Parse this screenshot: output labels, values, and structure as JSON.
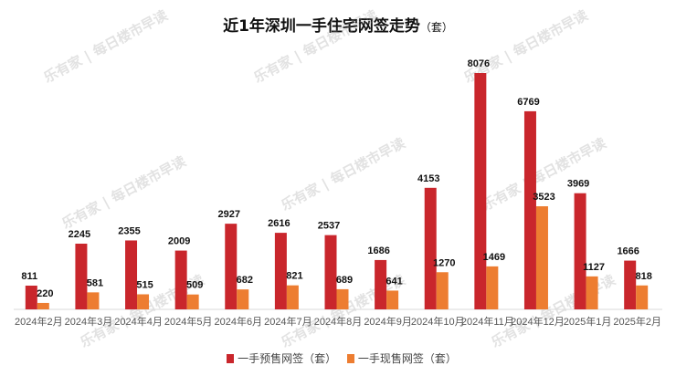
{
  "chart_data": {
    "type": "bar",
    "title": "近1年深圳一手住宅网签走势",
    "title_unit": "（套）",
    "categories": [
      "2024年2月",
      "2024年3月",
      "2024年4月",
      "2024年5月",
      "2024年6月",
      "2024年7月",
      "2024年8月",
      "2024年9月",
      "2024年10月",
      "2024年11月",
      "2024年12月",
      "2025年1月",
      "2025年2月"
    ],
    "series": [
      {
        "name": "一手预售网签（套）",
        "color": "#c9262c",
        "values": [
          811,
          2245,
          2355,
          2009,
          2927,
          2616,
          2537,
          1686,
          4153,
          8076,
          6769,
          3969,
          1666
        ]
      },
      {
        "name": "一手现售网签（套）",
        "color": "#ed7d31",
        "values": [
          220,
          581,
          515,
          509,
          682,
          821,
          689,
          641,
          1270,
          1469,
          3523,
          1127,
          818
        ]
      }
    ],
    "ylim": [
      0,
      8076
    ],
    "grid": false,
    "legend_position": "bottom",
    "xlabel": "",
    "ylabel": ""
  },
  "watermark": "乐有家 | 每日楼市早读"
}
